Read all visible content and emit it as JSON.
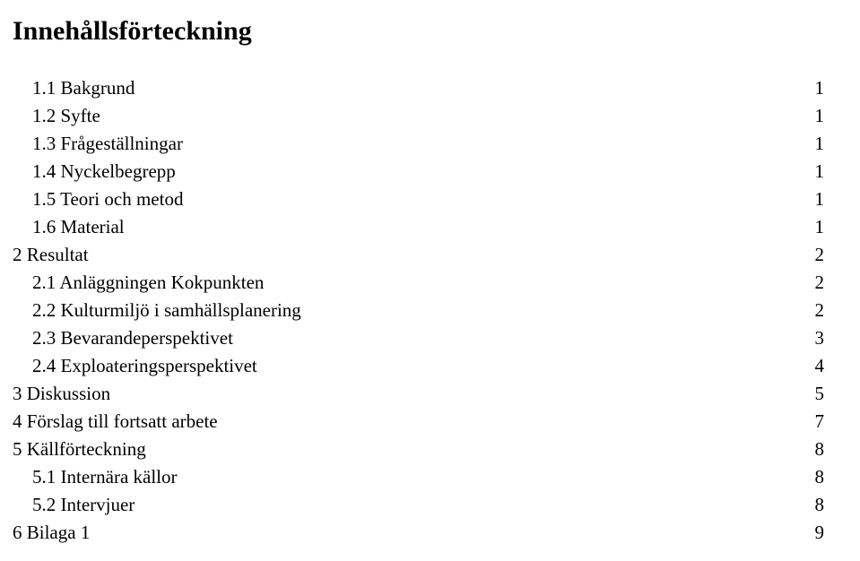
{
  "title": "Innehållsförteckning",
  "toc": [
    {
      "label": "1.1 Bakgrund",
      "page": "1",
      "indent": 1
    },
    {
      "label": "1.2 Syfte",
      "page": "1",
      "indent": 1
    },
    {
      "label": "1.3 Frågeställningar",
      "page": "1",
      "indent": 1
    },
    {
      "label": "1.4 Nyckelbegrepp",
      "page": "1",
      "indent": 1
    },
    {
      "label": "1.5 Teori och metod",
      "page": "1",
      "indent": 1
    },
    {
      "label": "1.6 Material",
      "page": "1",
      "indent": 1
    },
    {
      "label": "2 Resultat",
      "page": "2",
      "indent": 0
    },
    {
      "label": "2.1 Anläggningen Kokpunkten",
      "page": "2",
      "indent": 1
    },
    {
      "label": "2.2 Kulturmiljö i samhällsplanering",
      "page": "2",
      "indent": 1
    },
    {
      "label": "2.3 Bevarandeperspektivet",
      "page": "3",
      "indent": 1
    },
    {
      "label": "2.4 Exploateringsperspektivet",
      "page": "4",
      "indent": 1
    },
    {
      "label": "3 Diskussion",
      "page": "5",
      "indent": 0
    },
    {
      "label": "4 Förslag till fortsatt arbete",
      "page": "7",
      "indent": 0
    },
    {
      "label": "5 Källförteckning",
      "page": "8",
      "indent": 0
    },
    {
      "label": "5.1 Internära källor",
      "page": "8",
      "indent": 1
    },
    {
      "label": "5.2 Intervjuer",
      "page": "8",
      "indent": 1
    },
    {
      "label": "6 Bilaga 1",
      "page": "9",
      "indent": 0
    }
  ]
}
